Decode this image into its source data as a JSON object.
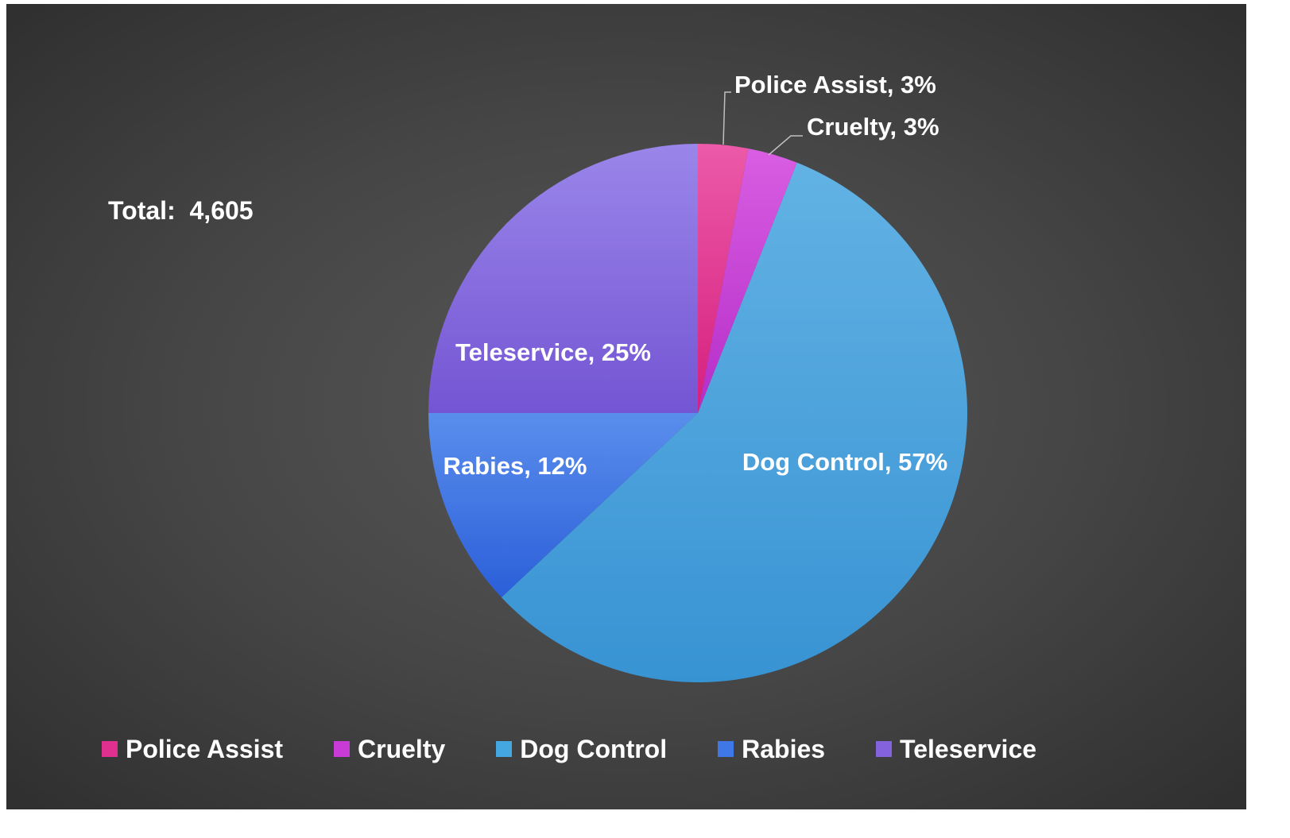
{
  "total_label": "Total:  4,605",
  "chart_data": {
    "type": "pie",
    "categories": [
      "Police Assist",
      "Cruelty",
      "Dog Control",
      "Rabies",
      "Teleservice"
    ],
    "values": [
      3,
      3,
      57,
      12,
      25
    ],
    "data_labels": [
      "Police Assist, 3%",
      "Cruelty, 3%",
      "Dog Control, 57%",
      "Rabies, 12%",
      "Teleservice, 25%"
    ],
    "colors": [
      "#e0308f",
      "#c83bd6",
      "#45a7e0",
      "#3f77e6",
      "#8462de"
    ],
    "legend_position": "bottom"
  }
}
